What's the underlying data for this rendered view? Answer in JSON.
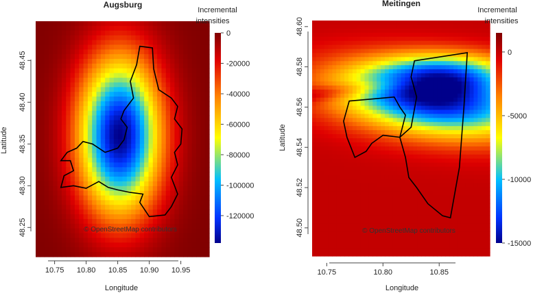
{
  "chart_data": [
    {
      "type": "heatmap",
      "title": "Augsburg",
      "xlabel": "Longitude",
      "ylabel": "Latitude",
      "xlim": [
        10.72,
        10.995
      ],
      "ylim": [
        48.215,
        48.497
      ],
      "xticks": [
        "10.75",
        "10.80",
        "10.85",
        "10.90",
        "10.95"
      ],
      "yticks": [
        "48.25",
        "48.30",
        "48.35",
        "48.40",
        "48.45"
      ],
      "colorbar": {
        "title_line1": "Incremental",
        "title_line2": "intensities",
        "range": [
          -138000,
          0
        ],
        "ticks": [
          "0",
          "-20000",
          "-40000",
          "-60000",
          "-80000",
          "-100000",
          "-120000"
        ]
      },
      "field": {
        "center": [
          10.853,
          48.36
        ],
        "sigma": [
          0.045,
          0.065
        ],
        "minimum": -138000
      },
      "attribution": "© OpenStreetMap contributors",
      "boundary": [
        [
          10.885,
          48.467
        ],
        [
          10.905,
          48.465
        ],
        [
          10.907,
          48.44
        ],
        [
          10.915,
          48.415
        ],
        [
          10.935,
          48.405
        ],
        [
          10.945,
          48.395
        ],
        [
          10.94,
          48.38
        ],
        [
          10.952,
          48.368
        ],
        [
          10.95,
          48.35
        ],
        [
          10.94,
          48.34
        ],
        [
          10.945,
          48.325
        ],
        [
          10.935,
          48.31
        ],
        [
          10.945,
          48.29
        ],
        [
          10.935,
          48.275
        ],
        [
          10.925,
          48.265
        ],
        [
          10.9,
          48.263
        ],
        [
          10.885,
          48.28
        ],
        [
          10.89,
          48.29
        ],
        [
          10.87,
          48.292
        ],
        [
          10.85,
          48.295
        ],
        [
          10.835,
          48.298
        ],
        [
          10.82,
          48.305
        ],
        [
          10.8,
          48.297
        ],
        [
          10.78,
          48.3
        ],
        [
          10.76,
          48.298
        ],
        [
          10.765,
          48.312
        ],
        [
          10.78,
          48.318
        ],
        [
          10.775,
          48.33
        ],
        [
          10.76,
          48.33
        ],
        [
          10.77,
          48.34
        ],
        [
          10.785,
          48.345
        ],
        [
          10.795,
          48.353
        ],
        [
          10.81,
          48.35
        ],
        [
          10.83,
          48.34
        ],
        [
          10.85,
          48.345
        ],
        [
          10.86,
          48.355
        ],
        [
          10.865,
          48.37
        ],
        [
          10.855,
          48.38
        ],
        [
          10.86,
          48.39
        ],
        [
          10.875,
          48.405
        ],
        [
          10.87,
          48.425
        ],
        [
          10.88,
          48.445
        ],
        [
          10.885,
          48.467
        ]
      ]
    },
    {
      "type": "heatmap",
      "title": "Meitingen",
      "xlabel": "Longitude",
      "ylabel": "Latitude",
      "xlim": [
        10.737,
        10.895
      ],
      "ylim": [
        48.486,
        48.603
      ],
      "xticks": [
        "10.75",
        "10.80",
        "10.85"
      ],
      "yticks": [
        "48.50",
        "48.52",
        "48.54",
        "48.56",
        "48.58",
        "48.60"
      ],
      "colorbar": {
        "title_line1": "Incremental",
        "title_line2": "intensities",
        "range": [
          -15000,
          1500
        ],
        "ticks": [
          "0",
          "-5000",
          "-10000",
          "-15000"
        ]
      },
      "attribution": "© OpenStreetMap contributors",
      "boundary_east": [
        [
          10.828,
          48.583
        ],
        [
          10.875,
          48.587
        ],
        [
          10.872,
          48.56
        ],
        [
          10.868,
          48.53
        ],
        [
          10.86,
          48.505
        ],
        [
          10.853,
          48.506
        ],
        [
          10.84,
          48.512
        ],
        [
          10.83,
          48.52
        ],
        [
          10.823,
          48.525
        ],
        [
          10.82,
          48.535
        ],
        [
          10.815,
          48.545
        ],
        [
          10.825,
          48.55
        ],
        [
          10.83,
          48.565
        ],
        [
          10.825,
          48.575
        ],
        [
          10.828,
          48.583
        ]
      ],
      "boundary_west": [
        [
          10.77,
          48.563
        ],
        [
          10.79,
          48.564
        ],
        [
          10.81,
          48.565
        ],
        [
          10.815,
          48.56
        ],
        [
          10.82,
          48.556
        ],
        [
          10.815,
          48.545
        ],
        [
          10.8,
          48.546
        ],
        [
          10.79,
          48.542
        ],
        [
          10.785,
          48.538
        ],
        [
          10.775,
          48.535
        ],
        [
          10.768,
          48.545
        ],
        [
          10.765,
          48.553
        ],
        [
          10.77,
          48.563
        ]
      ]
    }
  ]
}
